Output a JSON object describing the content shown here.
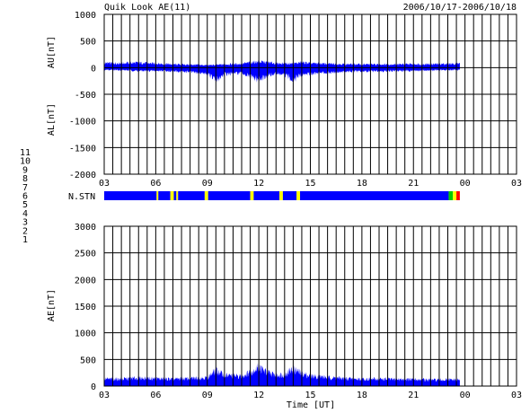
{
  "header": {
    "title": "Quik Look AE(11)",
    "date_range": "2006/10/17-2006/10/18"
  },
  "colors": {
    "data": "#0000ff",
    "grid": "#000000",
    "station_count": {
      "1": "#0000ff",
      "2": "#ff00ff",
      "3": "#00cccc",
      "4": "#aaaaaa",
      "5": "#aaaaaa",
      "6": "#ff0000",
      "7": "#00cc00",
      "8": "#ffff00",
      "9": "#0000aa",
      "10": "#ff00ff",
      "11": "#00ffff"
    }
  },
  "chart_data": [
    {
      "name": "AU/AL",
      "type": "area",
      "ylabel_top": "AU[nT]",
      "ylabel_bottom": "AL[nT]",
      "ylim": [
        -2000,
        1000
      ],
      "yticks": [
        "1000",
        "500",
        "0",
        "-500",
        "-1000",
        "-1500",
        "-2000"
      ],
      "yticks_values": [
        1000,
        500,
        0,
        -500,
        -1000,
        -1500,
        -2000
      ],
      "xticks": [
        "03",
        "06",
        "09",
        "12",
        "15",
        "18",
        "21",
        "00",
        "03"
      ],
      "x_unit": "UT hour, 2006/10/17 03:00 to 2006/10/18 03:00",
      "xlim": [
        3,
        27
      ],
      "data_end": 23.7,
      "series": [
        {
          "name": "AU",
          "points": [
            [
              3,
              80
            ],
            [
              4,
              85
            ],
            [
              5,
              90
            ],
            [
              6,
              75
            ],
            [
              6.5,
              70
            ],
            [
              7,
              60
            ],
            [
              8,
              55
            ],
            [
              9,
              45
            ],
            [
              9.5,
              50
            ],
            [
              10,
              60
            ],
            [
              11,
              70
            ],
            [
              11.5,
              95
            ],
            [
              12,
              110
            ],
            [
              12.5,
              95
            ],
            [
              13,
              80
            ],
            [
              14,
              75
            ],
            [
              14.5,
              95
            ],
            [
              15,
              80
            ],
            [
              16,
              70
            ],
            [
              17,
              65
            ],
            [
              18,
              60
            ],
            [
              19,
              60
            ],
            [
              20,
              60
            ],
            [
              21,
              65
            ],
            [
              22,
              65
            ],
            [
              23,
              70
            ],
            [
              23.7,
              75
            ]
          ]
        },
        {
          "name": "AL",
          "points": [
            [
              3,
              -40
            ],
            [
              4,
              -45
            ],
            [
              5,
              -60
            ],
            [
              6,
              -60
            ],
            [
              6.5,
              -55
            ],
            [
              7,
              -70
            ],
            [
              8,
              -80
            ],
            [
              8.5,
              -100
            ],
            [
              9,
              -110
            ],
            [
              9.5,
              -240
            ],
            [
              10,
              -120
            ],
            [
              11,
              -100
            ],
            [
              11.5,
              -170
            ],
            [
              12,
              -240
            ],
            [
              12.5,
              -150
            ],
            [
              13,
              -110
            ],
            [
              13.5,
              -140
            ],
            [
              14,
              -220
            ],
            [
              14.5,
              -130
            ],
            [
              15,
              -110
            ],
            [
              16,
              -90
            ],
            [
              17,
              -75
            ],
            [
              18,
              -70
            ],
            [
              19,
              -65
            ],
            [
              20,
              -60
            ],
            [
              21,
              -55
            ],
            [
              22,
              -50
            ],
            [
              23,
              -45
            ],
            [
              23.7,
              -40
            ]
          ]
        }
      ]
    },
    {
      "name": "N.STN",
      "type": "bar",
      "label": "N.STN",
      "legend": [
        "11",
        "10",
        "9",
        "8",
        "7",
        "6",
        "5",
        "4",
        "3",
        "2",
        "1"
      ],
      "segments": [
        {
          "from": 3,
          "to": 6.05,
          "count": 1
        },
        {
          "from": 6.05,
          "to": 6.15,
          "count": 8
        },
        {
          "from": 6.15,
          "to": 6.85,
          "count": 1
        },
        {
          "from": 6.85,
          "to": 7.05,
          "count": 8
        },
        {
          "from": 7.05,
          "to": 7.2,
          "count": 1
        },
        {
          "from": 7.2,
          "to": 7.3,
          "count": 8
        },
        {
          "from": 7.3,
          "to": 8.85,
          "count": 1
        },
        {
          "from": 8.85,
          "to": 9.05,
          "count": 8
        },
        {
          "from": 9.05,
          "to": 11.5,
          "count": 1
        },
        {
          "from": 11.5,
          "to": 11.7,
          "count": 8
        },
        {
          "from": 11.7,
          "to": 13.2,
          "count": 1
        },
        {
          "from": 13.2,
          "to": 13.4,
          "count": 8
        },
        {
          "from": 13.4,
          "to": 14.2,
          "count": 1
        },
        {
          "from": 14.2,
          "to": 14.4,
          "count": 8
        },
        {
          "from": 14.4,
          "to": 23.05,
          "count": 1
        },
        {
          "from": 23.05,
          "to": 23.3,
          "count": 7
        },
        {
          "from": 23.3,
          "to": 23.5,
          "count": 8
        },
        {
          "from": 23.5,
          "to": 23.7,
          "count": 6
        }
      ]
    },
    {
      "name": "AE",
      "type": "area",
      "ylabel": "AE[nT]",
      "xlabel": "Time [UT]",
      "ylim": [
        0,
        3000
      ],
      "yticks": [
        "3000",
        "2500",
        "2000",
        "1500",
        "1000",
        "500",
        "0"
      ],
      "yticks_values": [
        3000,
        2500,
        2000,
        1500,
        1000,
        500,
        0
      ],
      "xticks": [
        "03",
        "06",
        "09",
        "12",
        "15",
        "18",
        "21",
        "00",
        "03"
      ],
      "xlim": [
        3,
        27
      ],
      "data_end": 23.7,
      "series": [
        {
          "name": "AE",
          "points": [
            [
              3,
              130
            ],
            [
              4,
              130
            ],
            [
              5,
              150
            ],
            [
              6,
              140
            ],
            [
              6.5,
              130
            ],
            [
              7,
              130
            ],
            [
              8,
              140
            ],
            [
              8.5,
              150
            ],
            [
              9,
              160
            ],
            [
              9.5,
              290
            ],
            [
              10,
              200
            ],
            [
              11,
              180
            ],
            [
              11.5,
              260
            ],
            [
              12,
              350
            ],
            [
              12.5,
              250
            ],
            [
              13,
              200
            ],
            [
              13.5,
              220
            ],
            [
              14,
              320
            ],
            [
              14.5,
              230
            ],
            [
              15,
              190
            ],
            [
              16,
              160
            ],
            [
              17,
              140
            ],
            [
              18,
              130
            ],
            [
              19,
              130
            ],
            [
              20,
              125
            ],
            [
              21,
              120
            ],
            [
              22,
              115
            ],
            [
              23,
              115
            ],
            [
              23.7,
              115
            ]
          ]
        }
      ]
    }
  ]
}
